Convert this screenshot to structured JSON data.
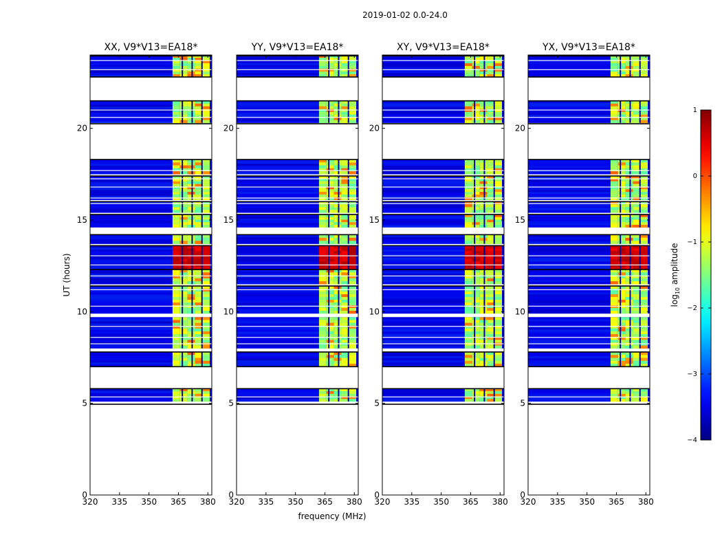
{
  "chart_data": {
    "type": "heatmap",
    "suptitle": "2019-01-02 0.0-24.0",
    "xlabel": "frequency (MHz)",
    "ylabel": "UT (hours)",
    "xlim": [
      320,
      382
    ],
    "ylim": [
      0,
      24
    ],
    "xticks": [
      "320",
      "335",
      "350",
      "365",
      "380"
    ],
    "xtick_values": [
      320,
      335,
      350,
      365,
      380
    ],
    "yticks": [
      "0",
      "5",
      "10",
      "15",
      "20"
    ],
    "ytick_values": [
      0,
      5,
      10,
      15,
      20
    ],
    "panels": [
      {
        "title": "XX, V9*V13=EA18*"
      },
      {
        "title": "YY, V9*V13=EA18*"
      },
      {
        "title": "XY, V9*V13=EA18*"
      },
      {
        "title": "YX, V9*V13=EA18*"
      }
    ],
    "colorbar": {
      "label_prefix": "log",
      "label_sub": "10",
      "label_suffix": " amplitude",
      "range": [
        -4,
        1
      ],
      "ticks": [
        "1",
        "0",
        "−1",
        "−2",
        "−3",
        "−4"
      ],
      "tick_values": [
        1,
        0,
        -1,
        -2,
        -3,
        -4
      ]
    },
    "data_blocks_ut_hours": [
      [
        5.1,
        5.8
      ],
      [
        7.0,
        7.8
      ],
      [
        8.0,
        9.7
      ],
      [
        9.9,
        11.4
      ],
      [
        11.5,
        12.3
      ],
      [
        12.3,
        13.6
      ],
      [
        13.7,
        14.2
      ],
      [
        14.6,
        15.3
      ],
      [
        15.4,
        16.0
      ],
      [
        16.1,
        17.4
      ],
      [
        17.5,
        18.3
      ],
      [
        20.3,
        21.5
      ],
      [
        22.8,
        24.0
      ]
    ],
    "missing_gaps_ut_hours": [
      [
        0.0,
        5.0
      ],
      [
        5.8,
        7.0
      ],
      [
        18.3,
        20.2
      ],
      [
        21.5,
        22.8
      ]
    ],
    "strong_rfi_band_mhz": [
      362,
      381
    ],
    "brightest_ut_hours": [
      12.3,
      13.3
    ]
  }
}
